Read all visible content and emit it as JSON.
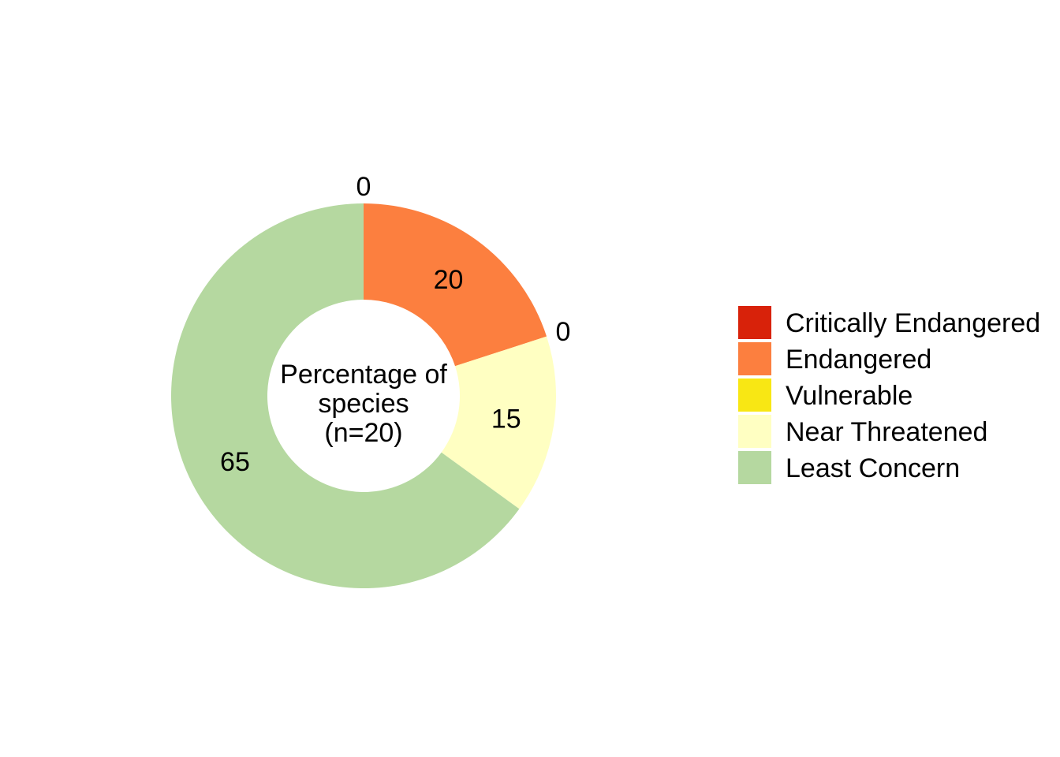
{
  "chart_data": {
    "type": "pie",
    "variant": "donut",
    "center_label": [
      "Percentage of",
      "species",
      "(n=20)"
    ],
    "categories": [
      "Critically Endangered",
      "Endangered",
      "Vulnerable",
      "Near Threatened",
      "Least Concern"
    ],
    "values": [
      0,
      20,
      0,
      15,
      65
    ],
    "data_labels": [
      "0",
      "20",
      "0",
      "15",
      "65"
    ],
    "colors": [
      "#D8220A",
      "#FC7F3F",
      "#F8E714",
      "#FFFFC2",
      "#B5D8A0"
    ],
    "legend": {
      "placement": "right",
      "entries": [
        "Critically Endangered",
        "Endangered",
        "Vulnerable",
        "Near Threatened",
        "Least Concern"
      ]
    },
    "direction": "clockwise",
    "start": "top"
  }
}
